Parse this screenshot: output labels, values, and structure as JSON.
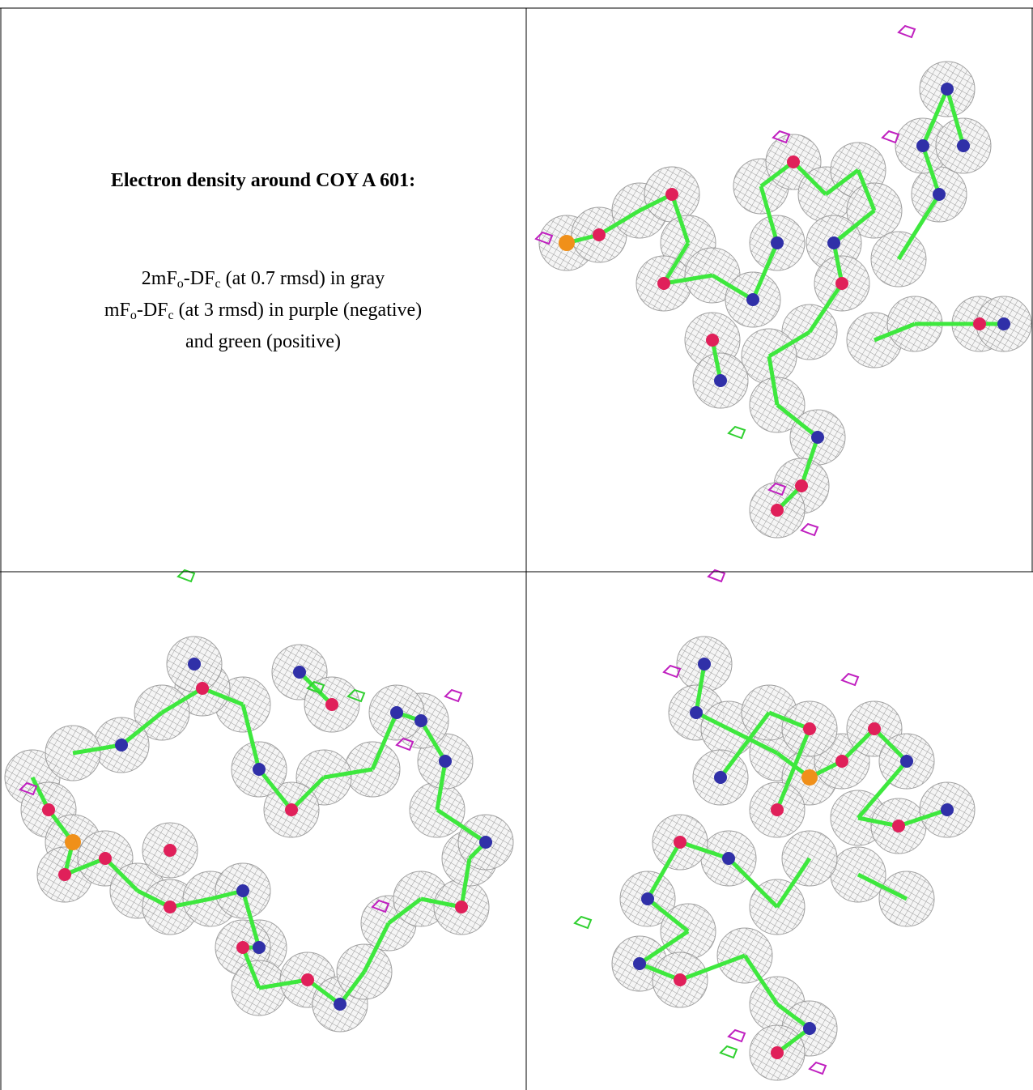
{
  "caption": {
    "title": "Electron density around COY A 601:",
    "lines": [
      [
        "2mF",
        "o",
        "-DF",
        "c",
        " (at 0.7 rmsd) in gray"
      ],
      [
        "mF",
        "o",
        "-DF",
        "c",
        " (at 3 rmsd) in purple (negative)"
      ],
      [
        "and green (positive)"
      ]
    ]
  }
}
